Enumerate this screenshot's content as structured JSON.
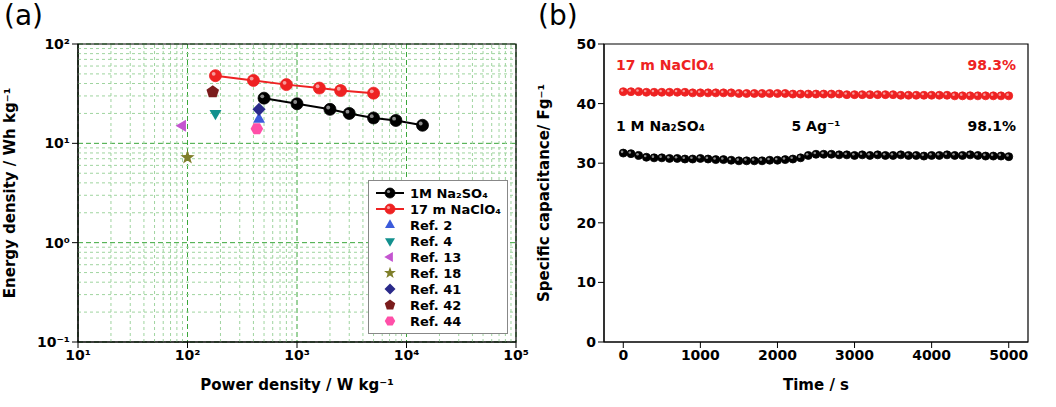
{
  "chart_data": [
    {
      "panel_label": "(a)",
      "type": "scatter",
      "x_label": "Power density / W kg⁻¹",
      "y_label": "Energy density / Wh kg⁻¹",
      "log": true,
      "grid": true,
      "legend": "lower right",
      "xlim": [
        10,
        100000
      ],
      "xticks": [
        {
          "value": 10,
          "label": "10¹"
        },
        {
          "value": 100,
          "label": "10²"
        },
        {
          "value": 1000,
          "label": "10³"
        },
        {
          "value": 10000,
          "label": "10⁴"
        },
        {
          "value": 100000,
          "label": "10⁵"
        }
      ],
      "ylim": [
        0.1,
        100
      ],
      "yticks": [
        {
          "value": 0.1,
          "label": "10⁻¹"
        },
        {
          "value": 1,
          "label": "10⁰"
        },
        {
          "value": 10,
          "label": "10¹"
        },
        {
          "value": 100,
          "label": "10²"
        }
      ],
      "series": [
        {
          "name": "1M Na₂SO₄",
          "type": "line",
          "color": "#000000",
          "marker": "circle",
          "x": [
            500,
            1000,
            2000,
            3000,
            5000,
            8000,
            14000
          ],
          "values": [
            28.5,
            25,
            22,
            20,
            18,
            17,
            15.2
          ]
        },
        {
          "name": "17 m NaClO₄",
          "type": "line",
          "color": "#ee2222",
          "marker": "circle",
          "x": [
            180,
            400,
            800,
            1600,
            2500,
            5000
          ],
          "values": [
            48,
            43,
            39,
            36,
            34,
            32
          ]
        },
        {
          "name": "Ref. 2",
          "type": "scatter",
          "color": "#3b5bdb",
          "marker": "triangle-up",
          "x": [
            450
          ],
          "values": [
            17.5
          ]
        },
        {
          "name": "Ref. 4",
          "type": "scatter",
          "color": "#12908e",
          "marker": "triangle-down",
          "x": [
            180
          ],
          "values": [
            20
          ]
        },
        {
          "name": "Ref. 13",
          "type": "scatter",
          "color": "#c455d0",
          "marker": "triangle-left",
          "x": [
            90
          ],
          "values": [
            15
          ]
        },
        {
          "name": "Ref. 18",
          "type": "scatter",
          "color": "#7f7f2a",
          "marker": "star",
          "x": [
            100
          ],
          "values": [
            7.2
          ]
        },
        {
          "name": "Ref. 41",
          "type": "scatter",
          "color": "#2a2a8a",
          "marker": "diamond",
          "x": [
            450
          ],
          "values": [
            22
          ]
        },
        {
          "name": "Ref. 42",
          "type": "scatter",
          "color": "#7a1c1c",
          "marker": "pentagon",
          "x": [
            170
          ],
          "values": [
            33
          ]
        },
        {
          "name": "Ref. 44",
          "type": "scatter",
          "color": "#ff4fa8",
          "marker": "hexagon",
          "x": [
            430
          ],
          "values": [
            14
          ]
        }
      ]
    },
    {
      "panel_label": "(b)",
      "type": "line",
      "x_label": "Time / s",
      "y_label": "Specific capacitance/ Fg⁻¹",
      "xlim": [
        -250,
        5250
      ],
      "xticks": [
        0,
        1000,
        2000,
        3000,
        4000,
        5000
      ],
      "ylim": [
        0,
        50
      ],
      "yticks": [
        0,
        10,
        20,
        30,
        40,
        50
      ],
      "x": [
        0,
        100,
        200,
        300,
        400,
        500,
        600,
        700,
        800,
        900,
        1000,
        1100,
        1200,
        1300,
        1400,
        1500,
        1600,
        1700,
        1800,
        1900,
        2000,
        2100,
        2200,
        2300,
        2400,
        2500,
        2600,
        2700,
        2800,
        2900,
        3000,
        3100,
        3200,
        3300,
        3400,
        3500,
        3600,
        3700,
        3800,
        3900,
        4000,
        4100,
        4200,
        4300,
        4400,
        4500,
        4600,
        4700,
        4800,
        4900,
        5000
      ],
      "series": [
        {
          "color": "#ee2222",
          "marker": "circle",
          "labels": [
            "17 m NaClO₄",
            "98.3%"
          ],
          "values": [
            42.0,
            42.0,
            42.0,
            41.9,
            41.9,
            41.9,
            41.9,
            41.9,
            41.9,
            41.8,
            41.8,
            41.8,
            41.8,
            41.8,
            41.8,
            41.7,
            41.7,
            41.7,
            41.7,
            41.7,
            41.7,
            41.7,
            41.6,
            41.6,
            41.6,
            41.6,
            41.6,
            41.6,
            41.6,
            41.5,
            41.5,
            41.5,
            41.5,
            41.5,
            41.5,
            41.5,
            41.4,
            41.4,
            41.4,
            41.4,
            41.4,
            41.4,
            41.4,
            41.3,
            41.3,
            41.3,
            41.3,
            41.3,
            41.3,
            41.3,
            41.3
          ]
        },
        {
          "color": "#000000",
          "marker": "circle",
          "labels": [
            "1 M Na₂SO₄",
            "5 Ag⁻¹",
            "98.1%"
          ],
          "values": [
            31.7,
            31.6,
            31.3,
            31.0,
            30.9,
            30.9,
            30.8,
            30.8,
            30.7,
            30.7,
            30.8,
            30.7,
            30.6,
            30.6,
            30.5,
            30.4,
            30.4,
            30.4,
            30.4,
            30.5,
            30.5,
            30.6,
            30.7,
            30.9,
            31.3,
            31.5,
            31.5,
            31.5,
            31.4,
            31.4,
            31.3,
            31.4,
            31.3,
            31.4,
            31.3,
            31.3,
            31.4,
            31.3,
            31.3,
            31.2,
            31.3,
            31.3,
            31.4,
            31.3,
            31.3,
            31.4,
            31.3,
            31.2,
            31.2,
            31.2,
            31.1
          ]
        }
      ]
    }
  ]
}
